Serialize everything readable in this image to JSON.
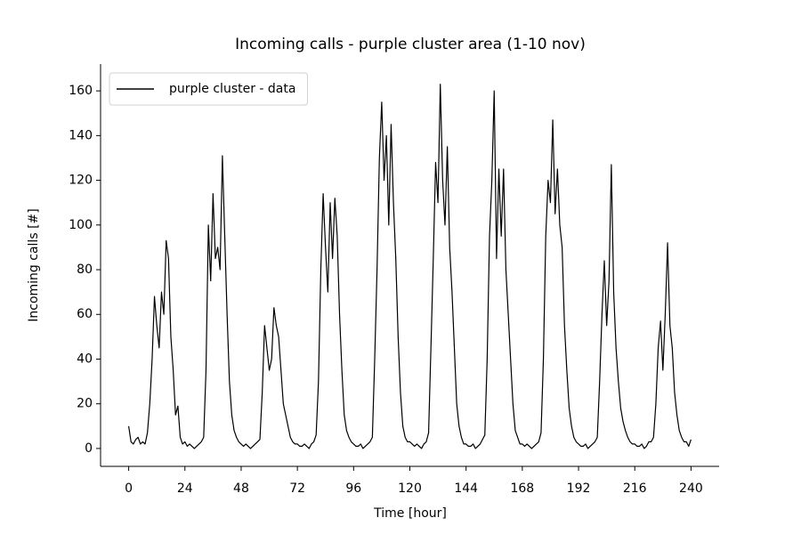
{
  "chart_data": {
    "type": "line",
    "title": "Incoming calls - purple cluster area (1-10 nov)",
    "x_label": "Time [hour]",
    "y_label": "Incoming calls [#]",
    "xlim": [
      -12,
      252
    ],
    "ylim": [
      -8,
      172
    ],
    "xticks": [
      0,
      24,
      48,
      72,
      96,
      120,
      144,
      168,
      192,
      216,
      240
    ],
    "yticks": [
      0,
      20,
      40,
      60,
      80,
      100,
      120,
      140,
      160
    ],
    "grid": false,
    "legend": "upper left",
    "x": [
      0,
      1,
      2,
      3,
      4,
      5,
      6,
      7,
      8,
      9,
      10,
      11,
      12,
      13,
      14,
      15,
      16,
      17,
      18,
      19,
      20,
      21,
      22,
      23,
      24,
      25,
      26,
      27,
      28,
      29,
      30,
      31,
      32,
      33,
      34,
      35,
      36,
      37,
      38,
      39,
      40,
      41,
      42,
      43,
      44,
      45,
      46,
      47,
      48,
      49,
      50,
      51,
      52,
      53,
      54,
      55,
      56,
      57,
      58,
      59,
      60,
      61,
      62,
      63,
      64,
      65,
      66,
      67,
      68,
      69,
      70,
      71,
      72,
      73,
      74,
      75,
      76,
      77,
      78,
      79,
      80,
      81,
      82,
      83,
      84,
      85,
      86,
      87,
      88,
      89,
      90,
      91,
      92,
      93,
      94,
      95,
      96,
      97,
      98,
      99,
      100,
      101,
      102,
      103,
      104,
      105,
      106,
      107,
      108,
      109,
      110,
      111,
      112,
      113,
      114,
      115,
      116,
      117,
      118,
      119,
      120,
      121,
      122,
      123,
      124,
      125,
      126,
      127,
      128,
      129,
      130,
      131,
      132,
      133,
      134,
      135,
      136,
      137,
      138,
      139,
      140,
      141,
      142,
      143,
      144,
      145,
      146,
      147,
      148,
      149,
      150,
      151,
      152,
      153,
      154,
      155,
      156,
      157,
      158,
      159,
      160,
      161,
      162,
      163,
      164,
      165,
      166,
      167,
      168,
      169,
      170,
      171,
      172,
      173,
      174,
      175,
      176,
      177,
      178,
      179,
      180,
      181,
      182,
      183,
      184,
      185,
      186,
      187,
      188,
      189,
      190,
      191,
      192,
      193,
      194,
      195,
      196,
      197,
      198,
      199,
      200,
      201,
      202,
      203,
      204,
      205,
      206,
      207,
      208,
      209,
      210,
      211,
      212,
      213,
      214,
      215,
      216,
      217,
      218,
      219,
      220,
      221,
      222,
      223,
      224,
      225,
      226,
      227,
      228,
      229,
      230,
      231,
      232,
      233,
      234,
      235,
      236,
      237,
      238,
      239,
      240
    ],
    "series": [
      {
        "name": "purple cluster - data",
        "color": "#000000",
        "values": [
          10,
          3,
          2,
          4,
          5,
          2,
          3,
          2,
          7,
          20,
          40,
          68,
          55,
          45,
          70,
          60,
          93,
          85,
          50,
          35,
          15,
          19,
          5,
          2,
          3,
          1,
          2,
          1,
          0,
          1,
          2,
          3,
          5,
          35,
          100,
          75,
          114,
          85,
          90,
          80,
          131,
          95,
          60,
          30,
          15,
          8,
          5,
          3,
          2,
          1,
          2,
          1,
          0,
          1,
          2,
          3,
          4,
          25,
          55,
          45,
          35,
          40,
          63,
          55,
          50,
          35,
          20,
          15,
          10,
          5,
          3,
          2,
          2,
          1,
          1,
          2,
          1,
          0,
          2,
          3,
          6,
          30,
          80,
          114,
          90,
          70,
          110,
          85,
          112,
          95,
          60,
          35,
          15,
          8,
          5,
          3,
          2,
          1,
          1,
          2,
          0,
          1,
          2,
          3,
          5,
          40,
          80,
          130,
          155,
          120,
          140,
          100,
          145,
          110,
          85,
          50,
          25,
          10,
          5,
          3,
          3,
          2,
          1,
          2,
          1,
          0,
          2,
          3,
          7,
          45,
          85,
          128,
          110,
          163,
          120,
          100,
          135,
          90,
          70,
          45,
          20,
          10,
          5,
          2,
          2,
          1,
          1,
          2,
          0,
          1,
          2,
          4,
          6,
          40,
          95,
          120,
          160,
          85,
          125,
          95,
          125,
          80,
          60,
          40,
          20,
          8,
          5,
          2,
          2,
          1,
          2,
          1,
          0,
          1,
          2,
          3,
          7,
          40,
          95,
          120,
          110,
          147,
          105,
          125,
          100,
          90,
          55,
          35,
          18,
          10,
          5,
          3,
          2,
          1,
          1,
          2,
          0,
          1,
          2,
          3,
          5,
          30,
          60,
          84,
          55,
          75,
          127,
          70,
          45,
          30,
          18,
          12,
          8,
          5,
          3,
          2,
          2,
          1,
          1,
          2,
          0,
          1,
          3,
          3,
          5,
          20,
          45,
          57,
          35,
          60,
          92,
          55,
          45,
          25,
          15,
          8,
          5,
          3,
          3,
          1,
          4
        ]
      }
    ]
  }
}
